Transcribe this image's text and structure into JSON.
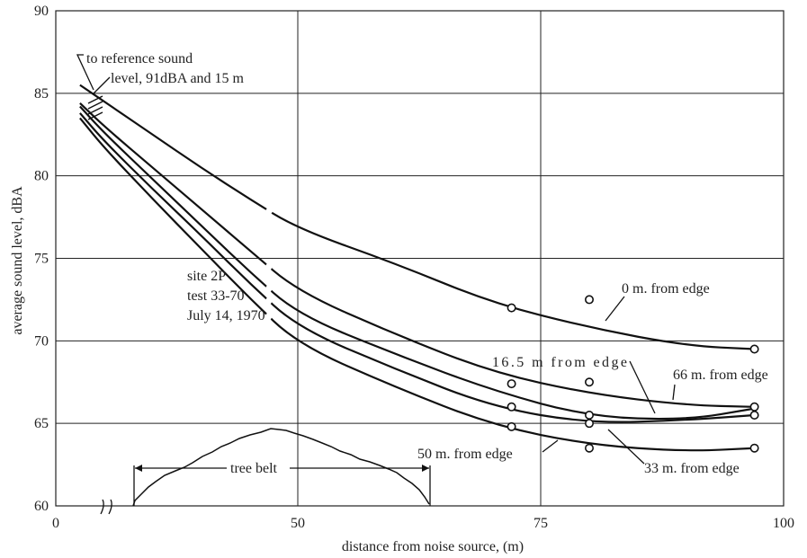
{
  "chart_data": {
    "type": "line",
    "xlabel": "distance from noise source, (m)",
    "ylabel": "average sound level, dBA",
    "x_tick_labels": [
      "0",
      "50",
      "75",
      "100"
    ],
    "y_tick_labels": [
      "60",
      "65",
      "70",
      "75",
      "80",
      "85",
      "90"
    ],
    "ylim": [
      60,
      90
    ],
    "grid": true,
    "site_info": [
      "site 2P",
      "test 33-70",
      "July 14, 1970"
    ],
    "reference_note": [
      "to reference sound",
      "level, 91dBA and 15 m"
    ],
    "tree_belt_label": "tree belt",
    "series": [
      {
        "name": "0 m. from edge",
        "x": [
          5,
          10,
          20,
          30,
          40,
          50,
          60,
          70,
          80,
          90,
          97
        ],
        "y": [
          85.5,
          84.5,
          82.5,
          80.5,
          78.6,
          76.8,
          74.7,
          72.3,
          70.8,
          69.7,
          69.5
        ]
      },
      {
        "name": "16.5 m from edge",
        "x": [
          5,
          10,
          20,
          30,
          40,
          50,
          60,
          70,
          80,
          90,
          97
        ],
        "y": [
          84.4,
          83.0,
          80.5,
          78.0,
          75.5,
          73.0,
          70.4,
          68.1,
          66.8,
          66.1,
          66.0
        ]
      },
      {
        "name": "66 m. from edge",
        "x": [
          5,
          10,
          20,
          30,
          40,
          50,
          60,
          70,
          80,
          90,
          97
        ],
        "y": [
          84.2,
          82.6,
          79.8,
          77.0,
          74.2,
          71.6,
          69.2,
          67.0,
          65.4,
          65.2,
          65.9
        ]
      },
      {
        "name": "33 m. from edge",
        "x": [
          5,
          10,
          20,
          30,
          40,
          50,
          60,
          70,
          80,
          90,
          97
        ],
        "y": [
          83.8,
          82.1,
          79.2,
          76.4,
          73.5,
          70.8,
          68.3,
          66.0,
          65.0,
          65.2,
          65.5
        ]
      },
      {
        "name": "50 m. from edge",
        "x": [
          5,
          10,
          20,
          30,
          40,
          50,
          60,
          70,
          80,
          90,
          97
        ],
        "y": [
          83.5,
          81.7,
          78.6,
          75.6,
          72.6,
          69.8,
          67.2,
          64.9,
          63.7,
          63.3,
          63.5
        ]
      }
    ],
    "measured_points": {
      "x": [
        72,
        72,
        72,
        72,
        80,
        80,
        80,
        80,
        80,
        97,
        97,
        97,
        97
      ],
      "y": [
        72.0,
        67.4,
        66.0,
        64.8,
        72.5,
        67.5,
        65.5,
        65.0,
        63.5,
        69.5,
        66.0,
        65.5,
        63.5
      ]
    }
  }
}
